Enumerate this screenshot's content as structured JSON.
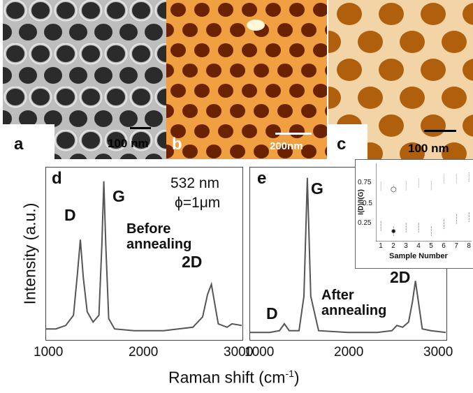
{
  "panels": {
    "a": {
      "letter": "a",
      "scale": "100 nm"
    },
    "b": {
      "letter": "b",
      "scale": "200nm"
    },
    "c": {
      "letter": "c",
      "scale": "100 nm"
    },
    "d": {
      "letter": "d",
      "laser": "532 nm",
      "spot": "ϕ=1μm",
      "condition_line1": "Before",
      "condition_line2": "annealing",
      "peaks": {
        "D": "D",
        "G": "G",
        "2D": "2D"
      }
    },
    "e": {
      "letter": "e",
      "condition_line1": "After",
      "condition_line2": "annealing",
      "peaks": {
        "D": "D",
        "G": "G",
        "2D": "2D"
      }
    }
  },
  "axes": {
    "ylabel": "Intensity (a.u.)",
    "xlabel": "Raman shift (cm",
    "xlabel_sup": "-1",
    "xlabel_end": ")",
    "d_ticks": [
      "1000",
      "2000",
      "3000"
    ],
    "e_ticks": [
      "1000",
      "2000",
      "3000"
    ]
  },
  "inset": {
    "ylabel": "I(D)/I(G)",
    "xlabel": "Sample Number",
    "yticks": [
      "0.75",
      "0.5",
      "0.25"
    ],
    "xticks": [
      "1",
      "2",
      "3",
      "4",
      "5",
      "6",
      "7",
      "8"
    ]
  },
  "chart_data": [
    {
      "type": "line",
      "title": "",
      "xlabel": "Raman shift (cm-1)",
      "ylabel": "Intensity (a.u.)",
      "xlim": [
        1000,
        3000
      ],
      "ylim": [
        0,
        1
      ],
      "grid": false,
      "series": [
        {
          "values": [
            [
              1000,
              0.06
            ],
            [
              1100,
              0.06
            ],
            [
              1200,
              0.08
            ],
            [
              1280,
              0.14
            ],
            [
              1320,
              0.38
            ],
            [
              1350,
              0.58
            ],
            [
              1380,
              0.36
            ],
            [
              1420,
              0.16
            ],
            [
              1480,
              0.1
            ],
            [
              1540,
              0.14
            ],
            [
              1570,
              0.55
            ],
            [
              1590,
              0.92
            ],
            [
              1610,
              0.55
            ],
            [
              1640,
              0.12
            ],
            [
              1700,
              0.06
            ],
            [
              1900,
              0.05
            ],
            [
              2200,
              0.05
            ],
            [
              2500,
              0.07
            ],
            [
              2600,
              0.13
            ],
            [
              2650,
              0.26
            ],
            [
              2690,
              0.32
            ],
            [
              2720,
              0.22
            ],
            [
              2760,
              0.09
            ],
            [
              2850,
              0.07
            ],
            [
              2900,
              0.09
            ],
            [
              3000,
              0.08
            ]
          ]
        }
      ]
    },
    {
      "type": "line",
      "title": "",
      "xlabel": "Raman shift (cm-1)",
      "ylabel": "Intensity (a.u.)",
      "xlim": [
        1000,
        3000
      ],
      "ylim": [
        0,
        1
      ],
      "grid": false,
      "series": [
        {
          "values": [
            [
              1000,
              0.04
            ],
            [
              1200,
              0.04
            ],
            [
              1300,
              0.05
            ],
            [
              1350,
              0.09
            ],
            [
              1400,
              0.05
            ],
            [
              1500,
              0.05
            ],
            [
              1550,
              0.25
            ],
            [
              1585,
              0.94
            ],
            [
              1620,
              0.25
            ],
            [
              1700,
              0.05
            ],
            [
              2000,
              0.04
            ],
            [
              2300,
              0.04
            ],
            [
              2450,
              0.05
            ],
            [
              2500,
              0.08
            ],
            [
              2560,
              0.07
            ],
            [
              2620,
              0.1
            ],
            [
              2660,
              0.22
            ],
            [
              2690,
              0.34
            ],
            [
              2720,
              0.22
            ],
            [
              2760,
              0.06
            ],
            [
              2850,
              0.05
            ],
            [
              3000,
              0.04
            ]
          ]
        }
      ]
    },
    {
      "type": "scatter",
      "title": "",
      "xlabel": "Sample Number",
      "ylabel": "I(D)/I(G)",
      "xlim": [
        0.6,
        8.2
      ],
      "ylim": [
        0,
        0.9
      ],
      "grid": false,
      "series": [
        {
          "values": [
            [
              1,
              0.63
            ],
            [
              2,
              0.6
            ],
            [
              3,
              0.64
            ],
            [
              4,
              0.67
            ],
            [
              5,
              0.64
            ],
            [
              6,
              0.72
            ],
            [
              7,
              0.72
            ],
            [
              8,
              0.74
            ]
          ]
        },
        {
          "values": [
            [
              1,
              0.18
            ],
            [
              2,
              0.12
            ],
            [
              3,
              0.16
            ],
            [
              4,
              0.16
            ],
            [
              5,
              0.12
            ],
            [
              6,
              0.2
            ],
            [
              7,
              0.26
            ],
            [
              8,
              0.28
            ]
          ]
        }
      ]
    }
  ]
}
